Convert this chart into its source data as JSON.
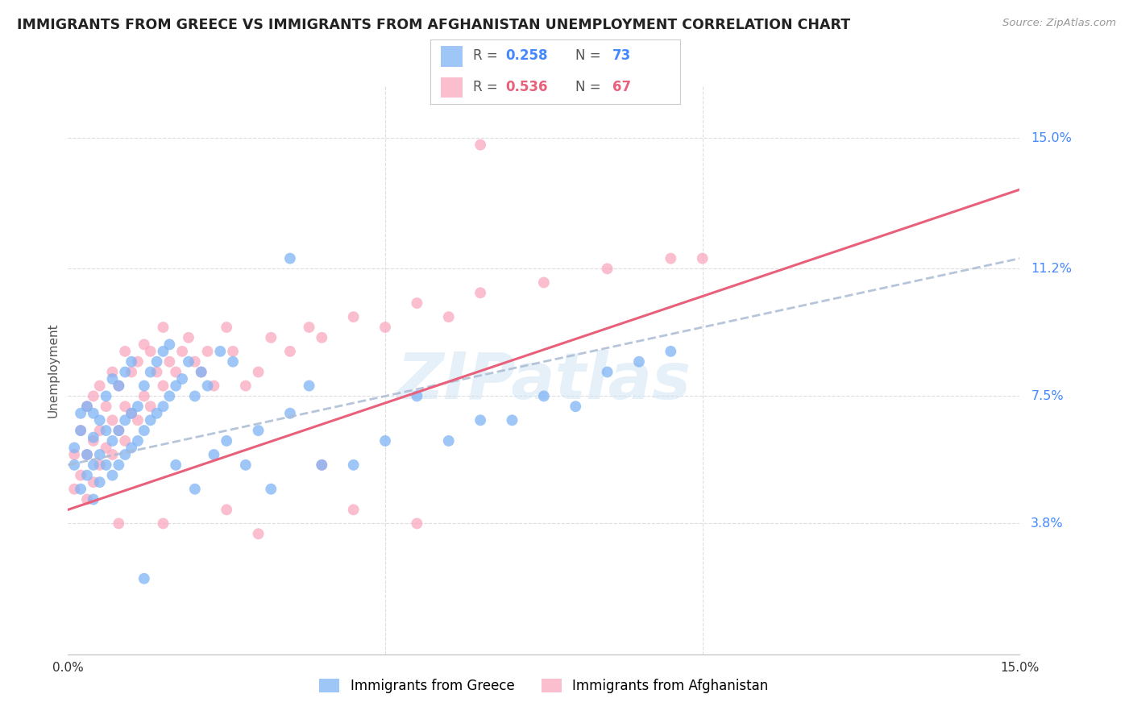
{
  "title": "IMMIGRANTS FROM GREECE VS IMMIGRANTS FROM AFGHANISTAN UNEMPLOYMENT CORRELATION CHART",
  "source": "Source: ZipAtlas.com",
  "ylabel": "Unemployment",
  "ytick_labels": [
    "15.0%",
    "11.2%",
    "7.5%",
    "3.8%"
  ],
  "ytick_values": [
    0.15,
    0.112,
    0.075,
    0.038
  ],
  "xlim": [
    0.0,
    0.15
  ],
  "ylim": [
    0.0,
    0.165
  ],
  "color_greece": "#7EB3F5",
  "color_afghanistan": "#F9A8C0",
  "color_reg_greece": "#AABBD4",
  "color_reg_afghanistan": "#E8607A",
  "watermark": "ZIPatlas",
  "legend_r1": "0.258",
  "legend_n1": "73",
  "legend_r2": "0.536",
  "legend_n2": "67",
  "greece_scatter_x": [
    0.001,
    0.001,
    0.002,
    0.002,
    0.002,
    0.003,
    0.003,
    0.003,
    0.004,
    0.004,
    0.004,
    0.004,
    0.005,
    0.005,
    0.005,
    0.006,
    0.006,
    0.006,
    0.007,
    0.007,
    0.007,
    0.008,
    0.008,
    0.008,
    0.009,
    0.009,
    0.009,
    0.01,
    0.01,
    0.01,
    0.011,
    0.011,
    0.012,
    0.012,
    0.013,
    0.013,
    0.014,
    0.014,
    0.015,
    0.015,
    0.016,
    0.016,
    0.017,
    0.017,
    0.018,
    0.019,
    0.02,
    0.02,
    0.021,
    0.022,
    0.023,
    0.024,
    0.025,
    0.026,
    0.028,
    0.03,
    0.032,
    0.035,
    0.038,
    0.04,
    0.045,
    0.05,
    0.055,
    0.06,
    0.065,
    0.07,
    0.075,
    0.08,
    0.085,
    0.09,
    0.095,
    0.035,
    0.012
  ],
  "greece_scatter_y": [
    0.055,
    0.06,
    0.048,
    0.065,
    0.07,
    0.052,
    0.058,
    0.072,
    0.045,
    0.055,
    0.063,
    0.07,
    0.05,
    0.058,
    0.068,
    0.055,
    0.065,
    0.075,
    0.052,
    0.062,
    0.08,
    0.055,
    0.065,
    0.078,
    0.058,
    0.068,
    0.082,
    0.06,
    0.07,
    0.085,
    0.062,
    0.072,
    0.065,
    0.078,
    0.068,
    0.082,
    0.07,
    0.085,
    0.072,
    0.088,
    0.075,
    0.09,
    0.078,
    0.055,
    0.08,
    0.085,
    0.048,
    0.075,
    0.082,
    0.078,
    0.058,
    0.088,
    0.062,
    0.085,
    0.055,
    0.065,
    0.048,
    0.07,
    0.078,
    0.055,
    0.055,
    0.062,
    0.075,
    0.062,
    0.068,
    0.068,
    0.075,
    0.072,
    0.082,
    0.085,
    0.088,
    0.115,
    0.022
  ],
  "afghanistan_scatter_x": [
    0.001,
    0.001,
    0.002,
    0.002,
    0.003,
    0.003,
    0.003,
    0.004,
    0.004,
    0.004,
    0.005,
    0.005,
    0.005,
    0.006,
    0.006,
    0.007,
    0.007,
    0.007,
    0.008,
    0.008,
    0.009,
    0.009,
    0.009,
    0.01,
    0.01,
    0.011,
    0.011,
    0.012,
    0.012,
    0.013,
    0.013,
    0.014,
    0.015,
    0.015,
    0.016,
    0.017,
    0.018,
    0.019,
    0.02,
    0.021,
    0.022,
    0.023,
    0.025,
    0.026,
    0.028,
    0.03,
    0.032,
    0.035,
    0.038,
    0.04,
    0.045,
    0.05,
    0.055,
    0.06,
    0.065,
    0.075,
    0.085,
    0.095,
    0.1,
    0.045,
    0.055,
    0.065,
    0.03,
    0.04,
    0.025,
    0.015,
    0.008
  ],
  "afghanistan_scatter_y": [
    0.048,
    0.058,
    0.052,
    0.065,
    0.045,
    0.058,
    0.072,
    0.05,
    0.062,
    0.075,
    0.055,
    0.065,
    0.078,
    0.06,
    0.072,
    0.058,
    0.068,
    0.082,
    0.065,
    0.078,
    0.062,
    0.072,
    0.088,
    0.07,
    0.082,
    0.068,
    0.085,
    0.075,
    0.09,
    0.072,
    0.088,
    0.082,
    0.078,
    0.095,
    0.085,
    0.082,
    0.088,
    0.092,
    0.085,
    0.082,
    0.088,
    0.078,
    0.095,
    0.088,
    0.078,
    0.082,
    0.092,
    0.088,
    0.095,
    0.092,
    0.098,
    0.095,
    0.102,
    0.098,
    0.105,
    0.108,
    0.112,
    0.115,
    0.115,
    0.042,
    0.038,
    0.148,
    0.035,
    0.055,
    0.042,
    0.038,
    0.038
  ]
}
